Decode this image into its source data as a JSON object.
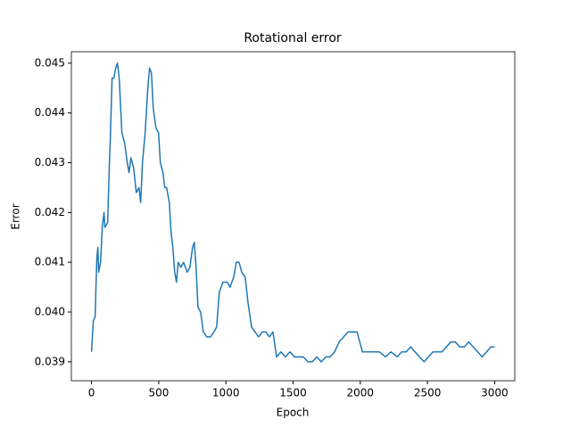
{
  "chart_data": {
    "type": "line",
    "title": "Rotational error",
    "x_label": "Epoch",
    "y_label": "Error",
    "x": [
      0,
      13,
      27,
      33,
      40,
      47,
      53,
      67,
      80,
      93,
      100,
      120,
      133,
      140,
      153,
      166,
      180,
      193,
      206,
      226,
      246,
      266,
      279,
      293,
      313,
      333,
      353,
      366,
      379,
      399,
      419,
      432,
      446,
      459,
      479,
      499,
      512,
      532,
      545,
      559,
      579,
      592,
      605,
      619,
      632,
      645,
      665,
      685,
      712,
      732,
      752,
      765,
      778,
      792,
      812,
      832,
      858,
      885,
      911,
      931,
      951,
      978,
      1011,
      1031,
      1058,
      1078,
      1098,
      1118,
      1144,
      1164,
      1191,
      1217,
      1244,
      1271,
      1297,
      1324,
      1350,
      1377,
      1410,
      1443,
      1477,
      1510,
      1543,
      1577,
      1610,
      1643,
      1676,
      1710,
      1743,
      1776,
      1809,
      1843,
      1876,
      1909,
      1942,
      1976,
      1996,
      2016,
      2042,
      2069,
      2095,
      2142,
      2188,
      2228,
      2275,
      2308,
      2342,
      2375,
      2408,
      2441,
      2475,
      2508,
      2541,
      2574,
      2608,
      2641,
      2674,
      2707,
      2741,
      2774,
      2807,
      2840,
      2874,
      2907,
      2940,
      2973,
      3000
    ],
    "series": [
      {
        "name": "Rotational error",
        "color": "#1f77b4",
        "values": [
          0.0392,
          0.03982,
          0.0399,
          0.0405,
          0.0411,
          0.0413,
          0.0408,
          0.041,
          0.0417,
          0.042,
          0.0417,
          0.0418,
          0.043,
          0.0435,
          0.0447,
          0.0447,
          0.0449,
          0.045,
          0.0447,
          0.0436,
          0.0434,
          0.043,
          0.0428,
          0.0431,
          0.0429,
          0.0424,
          0.0425,
          0.0422,
          0.043,
          0.0436,
          0.0445,
          0.0449,
          0.0448,
          0.0441,
          0.0437,
          0.0436,
          0.043,
          0.0428,
          0.0425,
          0.0425,
          0.0422,
          0.0416,
          0.0413,
          0.0408,
          0.0406,
          0.041,
          0.0409,
          0.041,
          0.0408,
          0.0409,
          0.0413,
          0.0414,
          0.0409,
          0.0401,
          0.04,
          0.0396,
          0.0395,
          0.0395,
          0.0396,
          0.0397,
          0.0404,
          0.0406,
          0.0406,
          0.0405,
          0.0407,
          0.041,
          0.041,
          0.0408,
          0.0407,
          0.0402,
          0.0397,
          0.0396,
          0.0395,
          0.0396,
          0.0396,
          0.0395,
          0.0396,
          0.0391,
          0.0392,
          0.0391,
          0.0392,
          0.0391,
          0.0391,
          0.0391,
          0.039,
          0.039,
          0.0391,
          0.039,
          0.0391,
          0.0391,
          0.0392,
          0.0394,
          0.0395,
          0.0396,
          0.0396,
          0.0396,
          0.0394,
          0.0392,
          0.0392,
          0.0392,
          0.0392,
          0.0392,
          0.0391,
          0.0392,
          0.0391,
          0.0392,
          0.0392,
          0.0393,
          0.0392,
          0.0391,
          0.039,
          0.0391,
          0.0392,
          0.0392,
          0.0392,
          0.0393,
          0.0394,
          0.0394,
          0.0393,
          0.0393,
          0.0394,
          0.0393,
          0.0392,
          0.0391,
          0.0392,
          0.0393,
          0.0393
        ]
      }
    ],
    "xlim": [
      -150,
      3150
    ],
    "xticks": [
      0,
      500,
      1000,
      1500,
      2000,
      2500,
      3000
    ],
    "ylim": [
      0.03862,
      0.04523
    ],
    "yticks": [
      0.039,
      {
        "value": 0.04,
        "label": "0.040"
      },
      0.041,
      0.042,
      0.043,
      0.044,
      0.045
    ],
    "grid": false
  }
}
